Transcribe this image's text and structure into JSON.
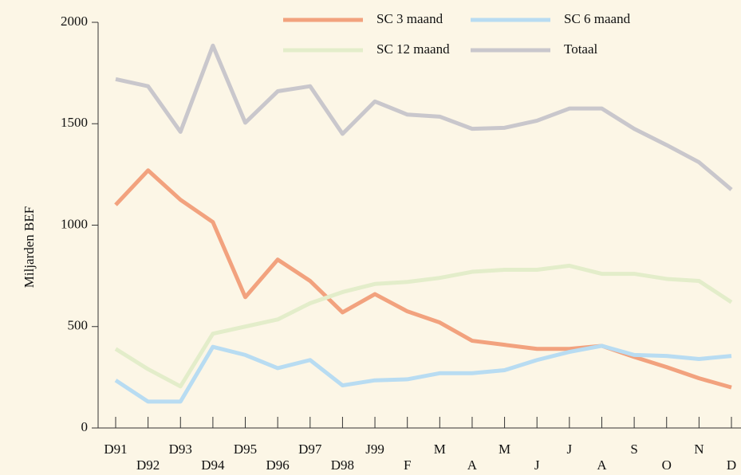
{
  "chart_data": {
    "type": "line",
    "y_label": "Miljarden BEF",
    "categories": [
      "D91",
      "D92",
      "D93",
      "D94",
      "D95",
      "D96",
      "D97",
      "D98",
      "J99",
      "F",
      "M",
      "A",
      "M",
      "J",
      "J",
      "A",
      "S",
      "O",
      "N",
      "D"
    ],
    "series": [
      {
        "name": "SC 3 maand",
        "color": "#f2a27e",
        "values": [
          1100,
          1270,
          1125,
          1015,
          645,
          830,
          725,
          570,
          660,
          575,
          520,
          430,
          410,
          390,
          390,
          405,
          350,
          300,
          245,
          200
        ]
      },
      {
        "name": "SC 6 maand",
        "color": "#b8dcf2",
        "values": [
          235,
          130,
          130,
          400,
          360,
          295,
          335,
          210,
          235,
          240,
          270,
          270,
          285,
          335,
          375,
          405,
          360,
          355,
          340,
          355
        ]
      },
      {
        "name": "SC 12 maand",
        "color": "#e3edca",
        "values": [
          390,
          290,
          205,
          465,
          500,
          535,
          615,
          670,
          710,
          720,
          740,
          770,
          780,
          780,
          800,
          760,
          760,
          735,
          725,
          620
        ]
      },
      {
        "name": "Totaal",
        "color": "#c9c7cc",
        "values": [
          1720,
          1685,
          1460,
          1885,
          1505,
          1660,
          1685,
          1450,
          1610,
          1545,
          1535,
          1475,
          1480,
          1515,
          1575,
          1575,
          1475,
          1395,
          1310,
          1175
        ]
      }
    ],
    "ylim": [
      0,
      2000
    ],
    "yticks": [
      0,
      500,
      1000,
      1500,
      2000
    ],
    "legend": "top-right"
  }
}
